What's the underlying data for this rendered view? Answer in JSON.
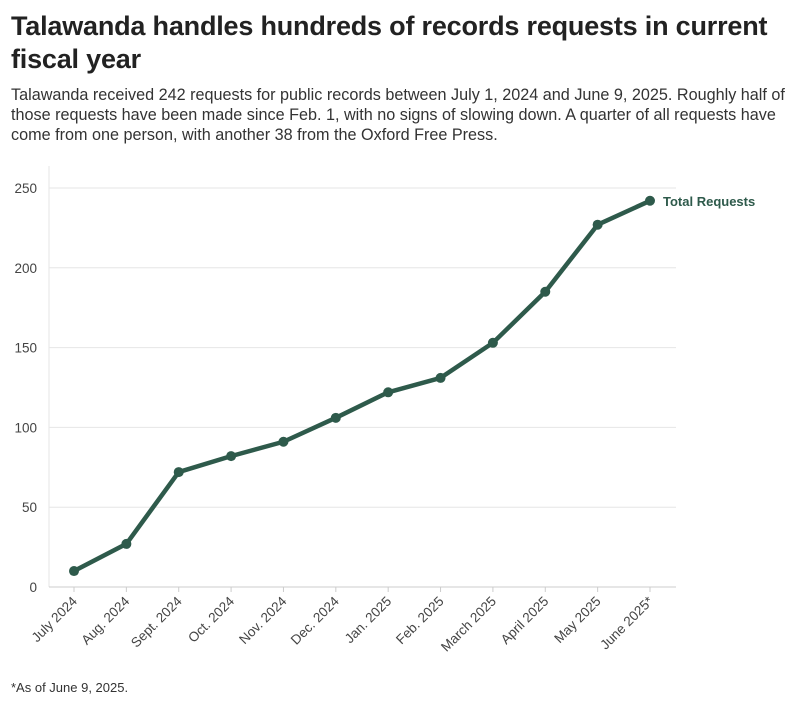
{
  "title": "Talawanda handles hundreds of records requests in current fiscal year",
  "subtitle": "Talawanda received 242 requests for public records between July 1, 2024 and June 9, 2025. Roughly half of those requests have been made since Feb. 1, with no signs of slowing down. A quarter of all requests have come from one person, with another 38 from the Oxford Free Press.",
  "footnote": "*As of June 9, 2025.",
  "colors": {
    "line": "#2e5a4b",
    "grid": "#e6e6e6",
    "axis": "#cccccc"
  },
  "chart_data": {
    "type": "line",
    "title": "Talawanda handles hundreds of records requests in current fiscal year",
    "xlabel": "",
    "ylabel": "",
    "categories": [
      "July 2024",
      "Aug. 2024",
      "Sept. 2024",
      "Oct. 2024",
      "Nov. 2024",
      "Dec. 2024",
      "Jan. 2025",
      "Feb. 2025",
      "March 2025",
      "April 2025",
      "May 2025",
      "June 2025*"
    ],
    "series": [
      {
        "name": "Total Requests",
        "values": [
          10,
          27,
          72,
          82,
          91,
          106,
          122,
          131,
          153,
          185,
          227,
          242
        ]
      }
    ],
    "ylim": [
      0,
      250
    ],
    "yticks": [
      0,
      50,
      100,
      150,
      200,
      250
    ],
    "grid": true,
    "legend": "end-of-line label"
  }
}
